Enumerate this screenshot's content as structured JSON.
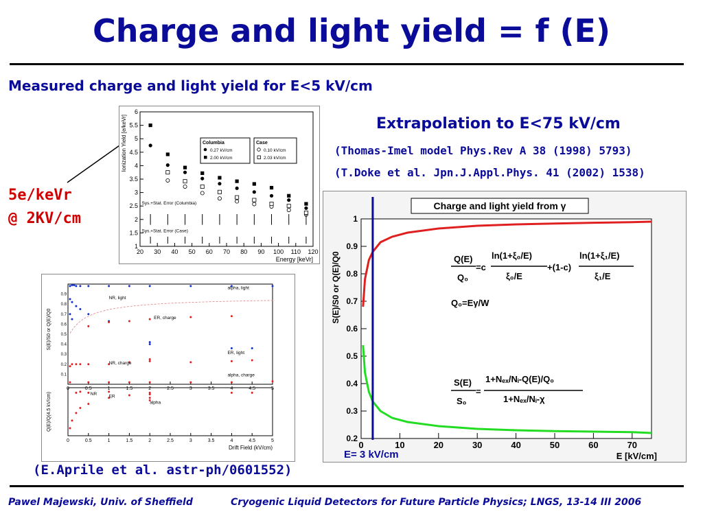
{
  "title": "Charge and light yield = f (E)",
  "subtitle": "Measured charge and light yield for E<5 kV/cm",
  "extrapolation": "Extrapolation to E<75 kV/cm",
  "ref1": "(Thomas-Imel model Phys.Rev A 38 (1998) 5793)",
  "ref2": "(T.Doke et al. Jpn.J.Appl.Phys. 41 (2002) 1538)",
  "annotation_line1": "5e/keVr",
  "annotation_line2": "@ 2KV/cm",
  "aprile_ref": "(E.Aprile et al. astr-ph/0601552)",
  "footer_left": "Pawel Majewski, Univ. of Sheffield",
  "footer_right": "Cryogenic Liquid Detectors for Future Particle Physics; LNGS, 13-14 III 2006",
  "colors": {
    "title": "#0b0b9a",
    "annotation": "#d00000",
    "red_curve": "#e02020",
    "green_curve": "#22dd22",
    "marker_line": "#0b0b9a"
  },
  "chart_data": [
    {
      "type": "scatter",
      "ylabel": "Ionization Yield [e/keVr]",
      "xlabel": "Energy [keVr]",
      "xlim": [
        20,
        120
      ],
      "ylim": [
        1,
        6
      ],
      "x_ticks": [
        20,
        30,
        40,
        50,
        60,
        70,
        80,
        90,
        100,
        110,
        120
      ],
      "y_ticks": [
        1,
        1.5,
        2,
        2.5,
        3,
        3.5,
        4,
        4.5,
        5,
        5.5,
        6
      ],
      "legend_columbia_title": "Columbia",
      "legend_case_title": "Case",
      "series": [
        {
          "name": "0.27 kV/cm",
          "marker": "filled-circle",
          "x": [
            26,
            36,
            46,
            56,
            66,
            76,
            86,
            96,
            106,
            116
          ],
          "y": [
            4.75,
            4.02,
            3.75,
            3.52,
            3.33,
            3.16,
            3.02,
            2.88,
            2.72,
            2.42
          ]
        },
        {
          "name": "2.00 kV/cm",
          "marker": "filled-square",
          "x": [
            26,
            36,
            46,
            56,
            66,
            76,
            86,
            96,
            106,
            116
          ],
          "y": [
            5.5,
            4.42,
            3.93,
            3.72,
            3.55,
            3.42,
            3.32,
            3.18,
            2.88,
            2.58
          ]
        },
        {
          "name": "0.10 kV/cm",
          "marker": "open-circle",
          "x": [
            36,
            46,
            56,
            66,
            76,
            86,
            96,
            106,
            116
          ],
          "y": [
            3.45,
            3.22,
            2.98,
            2.78,
            2.67,
            2.57,
            2.48,
            2.35,
            2.18
          ]
        },
        {
          "name": "2.03 kV/cm",
          "marker": "open-square",
          "x": [
            36,
            46,
            56,
            66,
            76,
            86,
            96,
            106,
            116
          ],
          "y": [
            3.75,
            3.42,
            3.22,
            3.02,
            2.82,
            2.72,
            2.58,
            2.5,
            2.25
          ]
        }
      ],
      "error_labels": [
        "Sys.+Stat. Error (Columbia)",
        "Sys.+Stat. Error (Case)"
      ]
    },
    {
      "type": "scatter",
      "ylabel_top": "S(E)/S0 or Q(E)/Q0",
      "ylabel_bottom": "Q(E)/Q(4.5 kV/cm)",
      "xlabel": "Drift Field (kV/cm)",
      "xlim": [
        0,
        5
      ],
      "x_ticks": [
        0,
        0.5,
        1,
        1.5,
        2,
        2.5,
        3,
        3.5,
        4,
        4.5,
        5
      ],
      "labels": [
        "alpha, light",
        "NR, light",
        "ER, charge",
        "ER, light",
        "NR, charge",
        "alpha, charge",
        "NR",
        "ER",
        "alpha"
      ]
    },
    {
      "type": "line",
      "title": "Charge and light yield from γ",
      "xlabel": "E [kV/cm]",
      "ylabel": "S(E)/S0 or Q(E)/Q0",
      "xlim": [
        0,
        75
      ],
      "ylim": [
        0.2,
        1.0
      ],
      "x_ticks": [
        0,
        10,
        20,
        30,
        40,
        50,
        60,
        70
      ],
      "y_ticks": [
        0.2,
        0.3,
        0.4,
        0.5,
        0.6,
        0.7,
        0.8,
        0.9,
        1
      ],
      "series": [
        {
          "name": "Q(E)/Q0",
          "x": [
            0.5,
            1,
            2,
            3,
            5,
            8,
            12,
            20,
            30,
            40,
            50,
            60,
            70,
            75
          ],
          "y": [
            0.68,
            0.78,
            0.85,
            0.88,
            0.915,
            0.935,
            0.95,
            0.965,
            0.975,
            0.98,
            0.983,
            0.986,
            0.988,
            0.99
          ]
        },
        {
          "name": "S(E)/S0",
          "x": [
            0.5,
            1,
            2,
            3,
            5,
            8,
            12,
            20,
            30,
            40,
            50,
            60,
            70,
            75
          ],
          "y": [
            0.54,
            0.44,
            0.37,
            0.335,
            0.3,
            0.275,
            0.26,
            0.245,
            0.235,
            0.23,
            0.227,
            0.225,
            0.223,
            0.22
          ]
        }
      ],
      "marker": {
        "label": "E= 3 kV/cm",
        "x": 3
      }
    }
  ]
}
